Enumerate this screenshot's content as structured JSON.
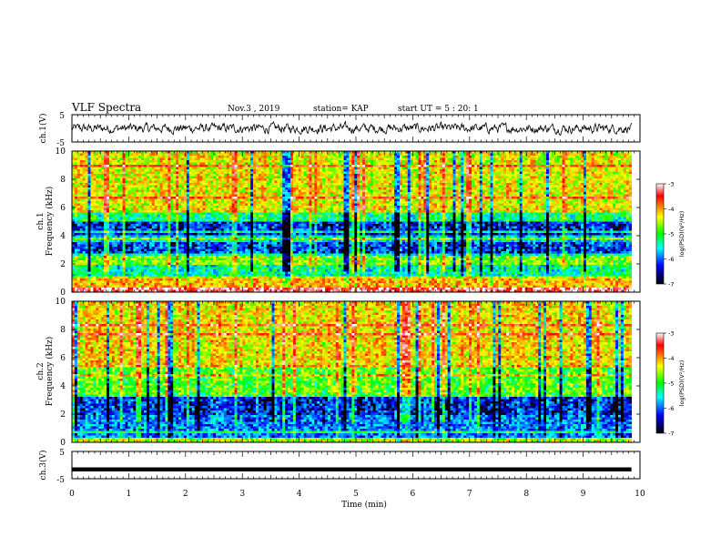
{
  "header": {
    "title": "VLF Spectra",
    "date": "Nov.3  , 2019",
    "station": "station= KAP",
    "start": "start  UT =   5 : 20: 1"
  },
  "colorbar": {
    "label": "log(PSD)(V²/Hz)",
    "ticks": [
      "-3",
      "-4",
      "-5",
      "-6",
      "-7"
    ],
    "colors": [
      "#ffffff",
      "#ff0000",
      "#ffff00",
      "#00ff00",
      "#00ffff",
      "#0000ff",
      "#000000"
    ]
  },
  "chart_data": [
    {
      "type": "line",
      "name": "ch.1 waveform",
      "ylabel": "ch.1(V)",
      "ylim": [
        -5,
        5
      ],
      "xlim": [
        0,
        10
      ],
      "y_ticks": [
        "5",
        "-5"
      ],
      "note": "noisy waveform around 0 V, roughly -2 to 2 V"
    },
    {
      "type": "heatmap",
      "ylabel": "ch.1\nFrequency (kHz)",
      "ylim": [
        0,
        10
      ],
      "xlim": [
        0,
        9.85
      ],
      "y_ticks": [
        "10",
        "8",
        "6",
        "4",
        "2",
        "0"
      ],
      "colorbar_range": [
        -7,
        -3
      ],
      "bands_log_psd": [
        {
          "f": [
            0,
            0.4
          ],
          "v": -3.3
        },
        {
          "f": [
            0.4,
            1.0
          ],
          "v": -4.3
        },
        {
          "f": [
            1.0,
            1.9
          ],
          "v": -5.6
        },
        {
          "f": [
            1.9,
            2.6
          ],
          "v": -5.0
        },
        {
          "f": [
            2.6,
            3.5
          ],
          "v": -6.4
        },
        {
          "f": [
            3.5,
            4.1
          ],
          "v": -5.8
        },
        {
          "f": [
            4.1,
            5.0
          ],
          "v": -6.5
        },
        {
          "f": [
            5.0,
            5.6
          ],
          "v": -5.5
        },
        {
          "f": [
            5.6,
            10.0
          ],
          "v": -4.6
        }
      ]
    },
    {
      "type": "heatmap",
      "ylabel": "ch.2\nFrequency (kHz)",
      "ylim": [
        0,
        10
      ],
      "xlim": [
        0,
        9.85
      ],
      "y_ticks": [
        "10",
        "8",
        "6",
        "4",
        "2",
        "0"
      ],
      "colorbar_range": [
        -7,
        -3
      ],
      "bands_log_psd": [
        {
          "f": [
            0,
            0.3
          ],
          "v": -4.8
        },
        {
          "f": [
            0.3,
            1.9
          ],
          "v": -6.2
        },
        {
          "f": [
            1.9,
            3.2
          ],
          "v": -6.5
        },
        {
          "f": [
            3.2,
            3.6
          ],
          "v": -5.2
        },
        {
          "f": [
            3.6,
            5.5
          ],
          "v": -5.1
        },
        {
          "f": [
            5.5,
            10.0
          ],
          "v": -4.5
        }
      ]
    },
    {
      "type": "line",
      "name": "ch.3 waveform",
      "ylabel": "ch.3(V)",
      "ylim": [
        -5,
        5
      ],
      "xlim": [
        0,
        10
      ],
      "y_ticks": [
        "5",
        "-5"
      ],
      "x": [
        0,
        9.85
      ],
      "y": [
        -1.6,
        -1.6
      ]
    }
  ],
  "xaxis": {
    "label": "Time (min)",
    "ticks": [
      "0",
      "1",
      "2",
      "3",
      "4",
      "5",
      "6",
      "7",
      "8",
      "9",
      "10"
    ],
    "range": [
      0,
      10
    ]
  }
}
